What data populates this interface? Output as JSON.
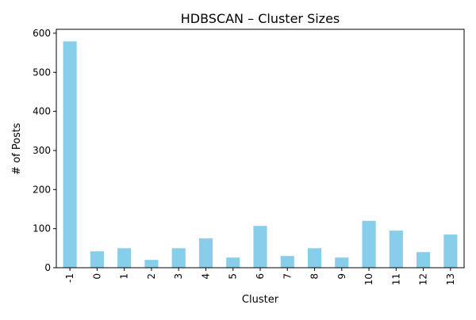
{
  "chart_data": {
    "type": "bar",
    "title": "HDBSCAN – Cluster Sizes",
    "xlabel": "Cluster",
    "ylabel": "# of Posts",
    "categories": [
      "-1",
      "0",
      "1",
      "2",
      "3",
      "4",
      "5",
      "6",
      "7",
      "8",
      "9",
      "10",
      "11",
      "12",
      "13"
    ],
    "values": [
      579,
      42,
      50,
      20,
      50,
      75,
      26,
      107,
      30,
      50,
      26,
      120,
      95,
      40,
      85
    ],
    "ylim": [
      0,
      610
    ],
    "yticks": [
      0,
      100,
      200,
      300,
      400,
      500,
      600
    ],
    "bar_color": "#87ceeb",
    "grid": false,
    "legend": "none"
  }
}
